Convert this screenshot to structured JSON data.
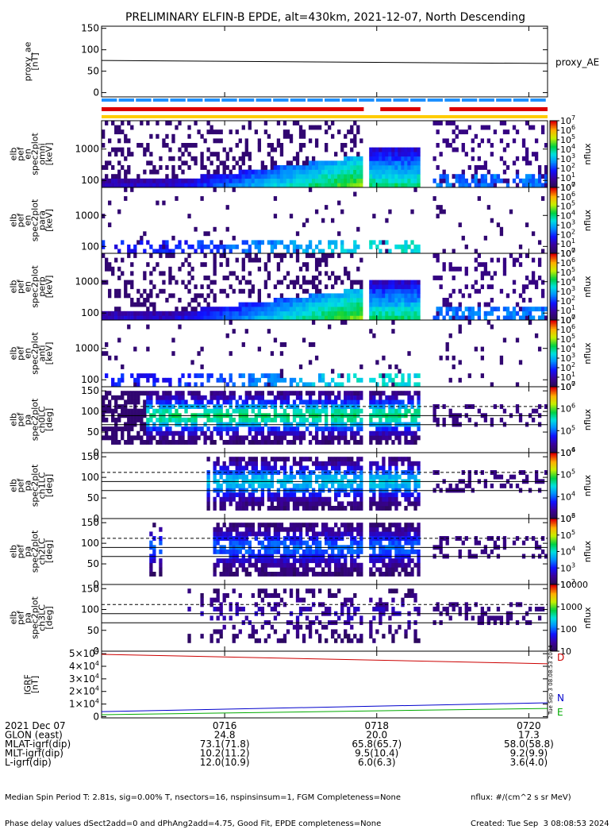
{
  "title": "PRELIMINARY ELFIN-B EPDE, alt=430km, 2021-12-07, North Descending",
  "colors": {
    "red_bar": "#dd0000",
    "blue_bar": "#1e90ff",
    "yellow_bar": "#ffcc00",
    "d_line": "#cc0000",
    "n_line": "#0000cc",
    "e_line": "#00aa00"
  },
  "chart_data": [
    {
      "type": "line",
      "id": "proxy_ae",
      "ylabel": "proxy_ae\n[nT]",
      "legend": "proxy_AE",
      "ylim": [
        -10,
        155
      ],
      "yticks": [
        "0",
        "50",
        "100",
        "150"
      ],
      "yticks_num": [
        0,
        50,
        100,
        150
      ],
      "x": [
        0,
        1
      ],
      "y": [
        75,
        68
      ]
    },
    {
      "type": "heatmap",
      "id": "spec1",
      "ylabel": "elb\npef\nen\nspec2plot\nomni\n[keV]",
      "scale": "log",
      "ylim": [
        60,
        8000
      ],
      "yticks": [
        "100",
        "1000"
      ],
      "yticks_num": [
        100,
        1000
      ],
      "colorbar": {
        "label": "nflux",
        "ticks": [
          "10",
          "10",
          "10",
          "10",
          "10",
          "10",
          "10",
          "10"
        ],
        "exps": [
          "0",
          "1",
          "2",
          "3",
          "4",
          "5",
          "6",
          "7"
        ]
      }
    },
    {
      "type": "heatmap",
      "id": "spec2",
      "ylabel": "elb\npef\nen\nspec2plot\npara\n[keV]",
      "scale": "log",
      "ylim": [
        60,
        8000
      ],
      "yticks": [
        "100",
        "1000"
      ],
      "yticks_num": [
        100,
        1000
      ],
      "colorbar": {
        "label": "nflux",
        "ticks": [
          "10",
          "10",
          "10",
          "10",
          "10",
          "10",
          "10",
          "10"
        ],
        "exps": [
          "0",
          "1",
          "2",
          "3",
          "4",
          "5",
          "6",
          "7"
        ]
      }
    },
    {
      "type": "heatmap",
      "id": "spec3",
      "ylabel": "elb\npef\nen\nspec2plot\nperp\n[keV]",
      "scale": "log",
      "ylim": [
        60,
        8000
      ],
      "yticks": [
        "100",
        "1000"
      ],
      "yticks_num": [
        100,
        1000
      ],
      "colorbar": {
        "label": "nflux",
        "ticks": [
          "10",
          "10",
          "10",
          "10",
          "10",
          "10",
          "10",
          "10"
        ],
        "exps": [
          "0",
          "1",
          "2",
          "3",
          "4",
          "5",
          "6",
          "7"
        ]
      }
    },
    {
      "type": "heatmap",
      "id": "spec4",
      "ylabel": "elb\npef\nen\nspec2plot\nanti\n[keV]",
      "scale": "log",
      "ylim": [
        60,
        8000
      ],
      "yticks": [
        "100",
        "1000"
      ],
      "yticks_num": [
        100,
        1000
      ],
      "colorbar": {
        "label": "nflux",
        "ticks": [
          "10",
          "10",
          "10",
          "10",
          "10",
          "10",
          "10",
          "10"
        ],
        "exps": [
          "0",
          "1",
          "2",
          "3",
          "4",
          "5",
          "6",
          "7"
        ]
      }
    },
    {
      "type": "heatmap",
      "id": "pa0",
      "ylabel": "elb\npef\npa\nspec2plot\nch0LC\n[deg]",
      "scale": "linear",
      "ylim": [
        0,
        160
      ],
      "yticks": [
        "0",
        "50",
        "100",
        "150"
      ],
      "yticks_num": [
        0,
        50,
        100,
        150
      ],
      "colorbar": {
        "label": "nflux",
        "ticks": [
          "10",
          "10",
          "10",
          "10"
        ],
        "exps": [
          "4",
          "5",
          "6",
          "7"
        ]
      }
    },
    {
      "type": "heatmap",
      "id": "pa1",
      "ylabel": "elb\npef\npa\nspec2plot\nch1LC\n[deg]",
      "scale": "linear",
      "ylim": [
        0,
        160
      ],
      "yticks": [
        "0",
        "50",
        "100",
        "150"
      ],
      "yticks_num": [
        0,
        50,
        100,
        150
      ],
      "colorbar": {
        "label": "nflux",
        "ticks": [
          "10",
          "10",
          "10",
          "10"
        ],
        "exps": [
          "3",
          "4",
          "5",
          "6"
        ]
      }
    },
    {
      "type": "heatmap",
      "id": "pa2",
      "ylabel": "elb\npef\npa\nspec2plot\nch2LC\n[deg]",
      "scale": "linear",
      "ylim": [
        0,
        160
      ],
      "yticks": [
        "0",
        "50",
        "100",
        "150"
      ],
      "yticks_num": [
        0,
        50,
        100,
        150
      ],
      "colorbar": {
        "label": "nflux",
        "ticks": [
          "10",
          "10",
          "10",
          "10",
          "10"
        ],
        "exps": [
          "2",
          "3",
          "4",
          "5",
          "6"
        ]
      }
    },
    {
      "type": "heatmap",
      "id": "pa3",
      "ylabel": "elb\npef\npa\nspec2plot\nch3LC\n[deg]",
      "scale": "linear",
      "ylim": [
        0,
        160
      ],
      "yticks": [
        "0",
        "50",
        "100",
        "150"
      ],
      "yticks_num": [
        0,
        50,
        100,
        150
      ],
      "colorbar": {
        "label": "nflux",
        "ticks": [
          "10",
          "100",
          "1000",
          "10000"
        ],
        "exps": [
          "",
          "",
          "",
          ""
        ]
      }
    },
    {
      "type": "line",
      "id": "bfield",
      "ylabel": "IGRF\n[nT]",
      "ylim": [
        -1000,
        52000
      ],
      "yticks": [
        "0",
        "1×10",
        "2×10",
        "3×10",
        "4×10",
        "5×10"
      ],
      "yticks_exp": [
        "",
        "4",
        "4",
        "4",
        "4",
        "4"
      ],
      "yticks_num": [
        0,
        10000,
        20000,
        30000,
        40000,
        50000
      ],
      "series": [
        {
          "name": "D",
          "x": [
            0,
            1
          ],
          "y": [
            49500,
            42000
          ]
        },
        {
          "name": "N",
          "x": [
            0,
            1
          ],
          "y": [
            4000,
            11000
          ]
        },
        {
          "name": "E",
          "x": [
            0,
            1
          ],
          "y": [
            1500,
            6500
          ]
        }
      ]
    }
  ],
  "time_axis": {
    "ticks": [
      "0716",
      "0718",
      "0720"
    ],
    "tick_fraction": [
      0.276,
      0.617,
      0.958
    ]
  },
  "ephemeris": [
    {
      "label": "2021 Dec 07",
      "values": [
        "0716",
        "0718",
        "0720"
      ]
    },
    {
      "label": "GLON (east)",
      "values": [
        "24.8",
        "20.0",
        "17.3"
      ]
    },
    {
      "label": "MLAT-igrf(dip)",
      "values": [
        "73.1(71.8)",
        "65.8(65.7)",
        "58.0(58.8)"
      ]
    },
    {
      "label": "MLT-igrf(dip)",
      "values": [
        "10.2(11.2)",
        "9.5(10.4)",
        "9.2(9.9)"
      ]
    },
    {
      "label": "L-igrf(dip)",
      "values": [
        "12.0(10.9)",
        "6.0(6.3)",
        "3.6(4.0)"
      ]
    }
  ],
  "footer": {
    "line1": "Median Spin Period T: 2.81s, sig=0.00% T, nsectors=16, nspinsinsum=1, FGM Completeness=None",
    "line2": "Phase delay values dSect2add=0 and dPhAng2add=4.75, Good Fit, EPDE completeness=None",
    "right1": "nflux: #/(cm^2 s sr MeV)",
    "right2": "Created: Tue Sep  3 08:08:53 2024",
    "side_stamp": "Tue Sep  3 08:08:53 2024"
  }
}
